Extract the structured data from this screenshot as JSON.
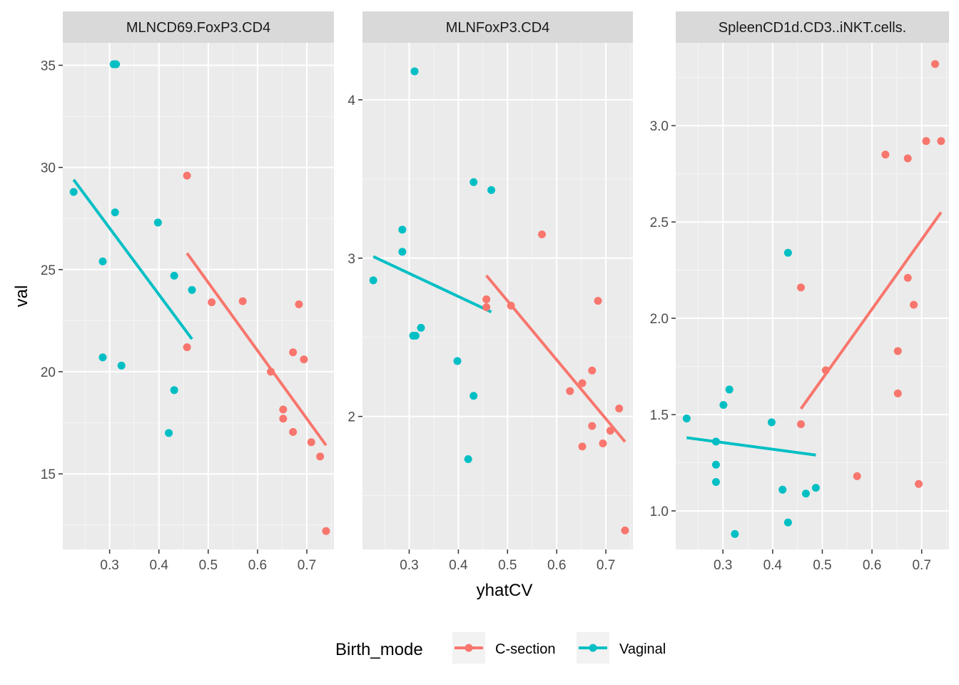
{
  "chart_data": {
    "type": "scatter",
    "xlabel": "yhatCV",
    "ylabel": "val",
    "legend": {
      "title": "Birth_mode",
      "position": "bottom",
      "entries": [
        {
          "name": "C-section",
          "color": "#F8766D"
        },
        {
          "name": "Vaginal",
          "color": "#00BFC4"
        }
      ]
    },
    "x_ticks": [
      0.3,
      0.4,
      0.5,
      0.6,
      0.7
    ],
    "grid": true,
    "panels": [
      {
        "title": "MLNCD69.FoxP3.CD4",
        "xlim": [
          0.205,
          0.755
        ],
        "ylim": [
          11.3,
          36.1
        ],
        "y_ticks": [
          15,
          20,
          25,
          30,
          35
        ],
        "series": [
          {
            "name": "C-section",
            "points": [
              [
                0.457,
                29.6
              ],
              [
                0.457,
                21.2
              ],
              [
                0.507,
                23.4
              ],
              [
                0.57,
                23.45
              ],
              [
                0.627,
                20.0
              ],
              [
                0.652,
                18.15
              ],
              [
                0.652,
                17.7
              ],
              [
                0.672,
                20.95
              ],
              [
                0.672,
                17.05
              ],
              [
                0.684,
                23.3
              ],
              [
                0.694,
                20.6
              ],
              [
                0.709,
                16.55
              ],
              [
                0.727,
                15.85
              ],
              [
                0.739,
                12.2
              ]
            ],
            "fit": [
              [
                0.457,
                25.8
              ],
              [
                0.739,
                16.4
              ]
            ]
          },
          {
            "name": "Vaginal",
            "points": [
              [
                0.227,
                28.8
              ],
              [
                0.286,
                25.4
              ],
              [
                0.286,
                20.7
              ],
              [
                0.308,
                35.05
              ],
              [
                0.313,
                35.05
              ],
              [
                0.311,
                27.8
              ],
              [
                0.324,
                20.3
              ],
              [
                0.398,
                27.3
              ],
              [
                0.42,
                17.0
              ],
              [
                0.431,
                24.7
              ],
              [
                0.431,
                19.1
              ],
              [
                0.467,
                24.0
              ]
            ],
            "fit": [
              [
                0.227,
                29.4
              ],
              [
                0.467,
                21.6
              ]
            ]
          }
        ]
      },
      {
        "title": "MLNFoxP3.CD4",
        "xlim": [
          0.205,
          0.755
        ],
        "ylim": [
          1.16,
          4.36
        ],
        "y_ticks": [
          2,
          3,
          4
        ],
        "series": [
          {
            "name": "C-section",
            "points": [
              [
                0.457,
                2.74
              ],
              [
                0.457,
                2.69
              ],
              [
                0.507,
                2.7
              ],
              [
                0.57,
                3.15
              ],
              [
                0.627,
                2.16
              ],
              [
                0.652,
                1.81
              ],
              [
                0.652,
                2.21
              ],
              [
                0.672,
                1.94
              ],
              [
                0.672,
                2.29
              ],
              [
                0.684,
                2.73
              ],
              [
                0.694,
                1.83
              ],
              [
                0.709,
                1.91
              ],
              [
                0.727,
                2.05
              ],
              [
                0.739,
                1.28
              ]
            ],
            "fit": [
              [
                0.457,
                2.89
              ],
              [
                0.739,
                1.84
              ]
            ]
          },
          {
            "name": "Vaginal",
            "points": [
              [
                0.227,
                2.86
              ],
              [
                0.286,
                3.18
              ],
              [
                0.286,
                3.04
              ],
              [
                0.308,
                2.51
              ],
              [
                0.313,
                2.51
              ],
              [
                0.311,
                4.18
              ],
              [
                0.324,
                2.56
              ],
              [
                0.398,
                2.35
              ],
              [
                0.42,
                1.73
              ],
              [
                0.431,
                3.48
              ],
              [
                0.431,
                2.13
              ],
              [
                0.467,
                3.43
              ]
            ],
            "fit": [
              [
                0.227,
                3.01
              ],
              [
                0.467,
                2.66
              ]
            ]
          }
        ]
      },
      {
        "title": "SpleenCD1d.CD3..iNKT.cells.",
        "xlim": [
          0.205,
          0.755
        ],
        "ylim": [
          0.8,
          3.43
        ],
        "y_ticks": [
          1.0,
          1.5,
          2.0,
          2.5,
          3.0
        ],
        "y_tick_labels": [
          "1.0",
          "1.5",
          "2.0",
          "2.5",
          "3.0"
        ],
        "series": [
          {
            "name": "C-section",
            "points": [
              [
                0.457,
                2.16
              ],
              [
                0.457,
                1.45
              ],
              [
                0.507,
                1.73
              ],
              [
                0.57,
                1.18
              ],
              [
                0.627,
                2.85
              ],
              [
                0.652,
                1.83
              ],
              [
                0.652,
                1.61
              ],
              [
                0.672,
                2.83
              ],
              [
                0.672,
                2.21
              ],
              [
                0.684,
                2.07
              ],
              [
                0.694,
                1.14
              ],
              [
                0.709,
                2.92
              ],
              [
                0.727,
                3.32
              ],
              [
                0.739,
                2.92
              ]
            ],
            "fit": [
              [
                0.457,
                1.53
              ],
              [
                0.739,
                2.55
              ]
            ]
          },
          {
            "name": "Vaginal",
            "points": [
              [
                0.227,
                1.48
              ],
              [
                0.286,
                1.36
              ],
              [
                0.286,
                1.24
              ],
              [
                0.286,
                1.15
              ],
              [
                0.301,
                1.55
              ],
              [
                0.313,
                1.63
              ],
              [
                0.324,
                0.88
              ],
              [
                0.398,
                1.46
              ],
              [
                0.42,
                1.11
              ],
              [
                0.431,
                2.34
              ],
              [
                0.431,
                0.94
              ],
              [
                0.467,
                1.09
              ],
              [
                0.487,
                1.12
              ]
            ],
            "fit": [
              [
                0.227,
                1.38
              ],
              [
                0.487,
                1.29
              ]
            ]
          }
        ]
      }
    ]
  }
}
